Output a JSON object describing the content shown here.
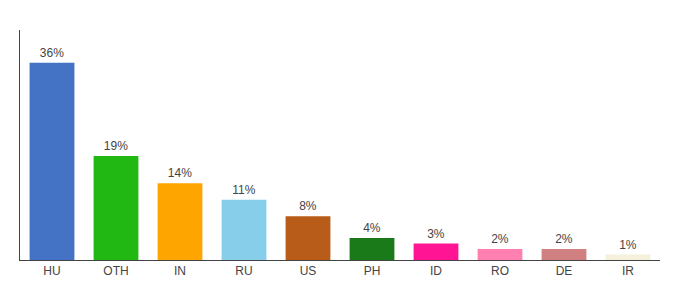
{
  "chart_data": {
    "type": "bar",
    "categories": [
      "HU",
      "OTH",
      "IN",
      "RU",
      "US",
      "PH",
      "ID",
      "RO",
      "DE",
      "IR"
    ],
    "values": [
      36,
      19,
      14,
      11,
      8,
      4,
      3,
      2,
      2,
      1
    ],
    "value_labels": [
      "36%",
      "19%",
      "14%",
      "11%",
      "8%",
      "4%",
      "3%",
      "2%",
      "2%",
      "1%"
    ],
    "colors": [
      "#4472c4",
      "#22b814",
      "#ffa500",
      "#87ceeb",
      "#b85c1a",
      "#1a7a1a",
      "#ff1493",
      "#ff80b0",
      "#d08080",
      "#f5f0dc"
    ],
    "ylim": [
      0,
      42
    ],
    "data_labels": true,
    "tick_labels": "x",
    "grid": false
  }
}
